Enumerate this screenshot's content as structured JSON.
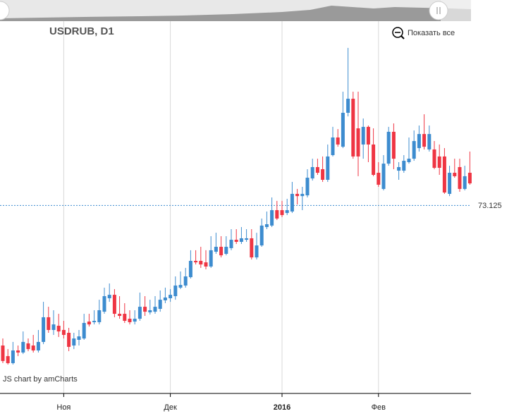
{
  "chart_data": {
    "type": "candlestick",
    "title": "USDRUB, D1",
    "zoom_button": "Показать все",
    "credit": "JS chart by amCharts",
    "categories": [
      null,
      null,
      null,
      null,
      null,
      null,
      null,
      null,
      null,
      null,
      null,
      null,
      "Ноя",
      null,
      null,
      null,
      null,
      null,
      null,
      null,
      null,
      null,
      null,
      null,
      null,
      null,
      null,
      null,
      null,
      null,
      null,
      null,
      null,
      "Дек",
      null,
      null,
      null,
      null,
      null,
      null,
      null,
      null,
      null,
      null,
      null,
      null,
      null,
      null,
      null,
      null,
      null,
      null,
      null,
      null,
      null,
      "2016",
      null,
      null,
      null,
      null,
      null,
      null,
      null,
      null,
      null,
      null,
      null,
      null,
      null,
      null,
      null,
      null,
      null,
      null,
      "Фев",
      null,
      null,
      null,
      null,
      null,
      null,
      null,
      null,
      null,
      null,
      null,
      null,
      null,
      null,
      null,
      null,
      null,
      null
    ],
    "open": [
      61.77,
      60.91,
      60.34,
      61.37,
      61.2,
      61.94,
      61.77,
      61.37,
      62.06,
      64.06,
      63.03,
      63.37,
      63.03,
      62.8,
      61.77,
      62.23,
      62.34,
      63.71,
      63.66,
      63.66,
      64.51,
      65.6,
      65.88,
      64.34,
      64.34,
      63.94,
      63.71,
      63.94,
      64.91,
      64.46,
      64.51,
      64.74,
      65.43,
      65.6,
      65.77,
      66.46,
      66.63,
      67.31,
      68.63,
      68.63,
      68.51,
      68.17,
      69.37,
      69.77,
      69.2,
      69.66,
      70.34,
      70.17,
      70.34,
      70.46,
      68.91,
      69.88,
      71.37,
      71.49,
      72.74,
      72.74,
      72.51,
      72.63,
      74.06,
      73.88,
      73.94,
      75.31,
      76.23,
      76.06,
      75.2,
      77.2,
      78.63,
      77.88,
      80.63,
      81.77,
      79.37,
      78.06,
      79.49,
      78.06,
      75.77,
      74.46,
      76.51,
      79.09,
      75.94,
      75.94,
      76.63,
      76.91,
      77.77,
      78.91,
      77.66,
      77.66,
      77.09,
      77.09,
      74.06,
      75.77,
      76.23,
      74.46,
      75.77
    ],
    "high": [
      62.34,
      61.48,
      62.06,
      61.77,
      62.91,
      62.34,
      62.63,
      63.03,
      65.31,
      64.91,
      64.63,
      64.34,
      63.77,
      63.2,
      62.8,
      63.03,
      64.34,
      64.34,
      64.63,
      65.48,
      66.46,
      66.8,
      66.34,
      65.77,
      65.2,
      64.63,
      64.63,
      66.06,
      65.77,
      65.48,
      65.77,
      66.23,
      66.46,
      66.34,
      67.37,
      67.77,
      68.06,
      69.49,
      69.49,
      69.77,
      69.49,
      70.63,
      70.91,
      70.63,
      70.63,
      71.2,
      71.2,
      71.37,
      71.2,
      71.2,
      70.91,
      72.06,
      72.63,
      73.77,
      73.49,
      73.49,
      73.66,
      75.03,
      74.46,
      74.63,
      76.06,
      76.91,
      76.91,
      77.09,
      78.06,
      79.49,
      79.31,
      82.34,
      85.89,
      82.34,
      82.34,
      80.17,
      79.6,
      79.37,
      76.63,
      77.2,
      79.49,
      79.77,
      76.63,
      77.2,
      78.63,
      79.2,
      79.6,
      80.51,
      79.6,
      78.34,
      78.06,
      77.77,
      76.34,
      76.91,
      76.91,
      76.34,
      77.49
    ],
    "low": [
      60.34,
      60.23,
      60.23,
      60.91,
      61.08,
      61.31,
      61.2,
      61.2,
      61.88,
      62.8,
      62.63,
      62.46,
      62.34,
      61.31,
      61.48,
      61.77,
      62.23,
      63.31,
      63.48,
      63.48,
      64.34,
      65.31,
      64.06,
      63.94,
      63.6,
      63.48,
      63.48,
      63.77,
      64.17,
      64.28,
      64.34,
      64.51,
      65.2,
      65.31,
      65.48,
      66.34,
      66.46,
      67.2,
      68.34,
      68.06,
      67.94,
      68.06,
      69.2,
      68.91,
      69.08,
      69.49,
      70.0,
      70.0,
      70.17,
      68.74,
      68.74,
      69.77,
      71.2,
      71.37,
      71.94,
      72.17,
      72.34,
      72.51,
      73.2,
      72.74,
      73.77,
      75.14,
      75.6,
      75.03,
      75.03,
      77.09,
      77.88,
      77.77,
      80.34,
      76.91,
      75.49,
      76.91,
      76.63,
      75.49,
      74.63,
      74.34,
      76.34,
      76.06,
      75.2,
      75.77,
      76.51,
      76.74,
      77.49,
      77.66,
      77.49,
      76.06,
      75.6,
      74.06,
      73.88,
      75.37,
      74.23,
      74.34,
      74.8
    ],
    "close": [
      60.51,
      60.34,
      61.37,
      61.2,
      62.06,
      61.48,
      61.37,
      62.06,
      64.06,
      63.03,
      63.48,
      62.91,
      62.63,
      61.66,
      62.34,
      62.51,
      63.6,
      63.48,
      63.77,
      64.63,
      65.77,
      65.88,
      64.34,
      64.17,
      63.77,
      63.66,
      63.94,
      64.91,
      64.51,
      64.63,
      64.91,
      65.48,
      65.66,
      65.88,
      66.63,
      66.68,
      67.37,
      68.63,
      68.51,
      68.34,
      68.17,
      69.49,
      69.77,
      69.08,
      69.77,
      70.34,
      70.17,
      70.46,
      70.46,
      68.91,
      69.88,
      71.49,
      71.6,
      72.74,
      72.06,
      72.34,
      72.74,
      74.06,
      73.88,
      74.06,
      75.37,
      76.23,
      75.77,
      75.2,
      77.09,
      78.63,
      78.06,
      80.63,
      81.77,
      77.09,
      77.09,
      79.49,
      78.06,
      75.6,
      74.8,
      76.51,
      79.09,
      76.91,
      76.23,
      76.74,
      76.91,
      78.34,
      78.91,
      77.88,
      78.91,
      76.17,
      76.17,
      74.17,
      75.77,
      75.49,
      74.46,
      75.49,
      74.91
    ],
    "increasing_color": "#3d8ccf",
    "decreasing_color": "#ef3543",
    "ylim": [
      58,
      88
    ],
    "guide": 73.125,
    "grid": true
  }
}
